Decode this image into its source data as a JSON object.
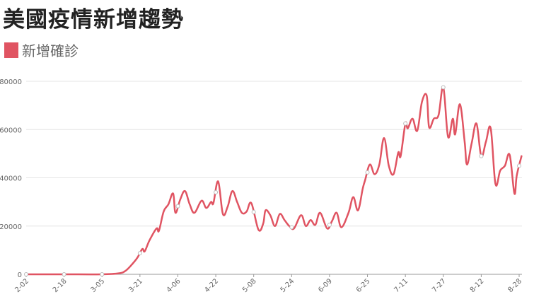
{
  "chart_data": {
    "type": "line",
    "title": "美國疫情新增趨勢",
    "series": [
      {
        "name": "新增確診",
        "color": "#e05462",
        "start_date": "2-02",
        "points": [
          [
            "2-02",
            0
          ],
          [
            "2-18",
            0
          ],
          [
            "3-05",
            0
          ],
          [
            "3-12",
            400
          ],
          [
            "3-15",
            1500
          ],
          [
            "3-18",
            4500
          ],
          [
            "3-20",
            7000
          ],
          [
            "3-22",
            10500
          ],
          [
            "3-23",
            9500
          ],
          [
            "3-25",
            14000
          ],
          [
            "3-28",
            19000
          ],
          [
            "3-29",
            18000
          ],
          [
            "3-31",
            26000
          ],
          [
            "4-02",
            29000
          ],
          [
            "4-04",
            33500
          ],
          [
            "4-05",
            25500
          ],
          [
            "4-07",
            31000
          ],
          [
            "4-09",
            34500
          ],
          [
            "4-11",
            29000
          ],
          [
            "4-13",
            25500
          ],
          [
            "4-16",
            30500
          ],
          [
            "4-18",
            27500
          ],
          [
            "4-20",
            30000
          ],
          [
            "4-21",
            29500
          ],
          [
            "4-23",
            38500
          ],
          [
            "4-25",
            25000
          ],
          [
            "4-27",
            28000
          ],
          [
            "4-29",
            34500
          ],
          [
            "5-01",
            30000
          ],
          [
            "5-03",
            25500
          ],
          [
            "5-05",
            26000
          ],
          [
            "5-07",
            29500
          ],
          [
            "5-10",
            18500
          ],
          [
            "5-12",
            21000
          ],
          [
            "5-13",
            26500
          ],
          [
            "5-15",
            24500
          ],
          [
            "5-17",
            20000
          ],
          [
            "5-19",
            25000
          ],
          [
            "5-21",
            22500
          ],
          [
            "5-23",
            20000
          ],
          [
            "5-25",
            19000
          ],
          [
            "5-28",
            24500
          ],
          [
            "5-30",
            20000
          ],
          [
            "6-01",
            22500
          ],
          [
            "6-03",
            20500
          ],
          [
            "6-05",
            25500
          ],
          [
            "6-08",
            19000
          ],
          [
            "6-10",
            22000
          ],
          [
            "6-12",
            25500
          ],
          [
            "6-14",
            19500
          ],
          [
            "6-17",
            25500
          ],
          [
            "6-19",
            32000
          ],
          [
            "6-21",
            26500
          ],
          [
            "6-23",
            35500
          ],
          [
            "6-24",
            39000
          ],
          [
            "6-26",
            45500
          ],
          [
            "6-28",
            41500
          ],
          [
            "6-30",
            45500
          ],
          [
            "7-02",
            56500
          ],
          [
            "7-04",
            45000
          ],
          [
            "7-06",
            41500
          ],
          [
            "7-08",
            50500
          ],
          [
            "7-09",
            49000
          ],
          [
            "7-11",
            62500
          ],
          [
            "7-12",
            60500
          ],
          [
            "7-14",
            64500
          ],
          [
            "7-16",
            59500
          ],
          [
            "7-18",
            71500
          ],
          [
            "7-20",
            74000
          ],
          [
            "7-21",
            61000
          ],
          [
            "7-23",
            64500
          ],
          [
            "7-25",
            66000
          ],
          [
            "7-27",
            77500
          ],
          [
            "7-29",
            57000
          ],
          [
            "7-31",
            64500
          ],
          [
            "8-01",
            58000
          ],
          [
            "8-03",
            70500
          ],
          [
            "8-05",
            55000
          ],
          [
            "8-06",
            45500
          ],
          [
            "8-08",
            54500
          ],
          [
            "8-10",
            62500
          ],
          [
            "8-12",
            49000
          ],
          [
            "8-14",
            55000
          ],
          [
            "8-16",
            60500
          ],
          [
            "8-18",
            37500
          ],
          [
            "8-20",
            43000
          ],
          [
            "8-22",
            45000
          ],
          [
            "8-24",
            49500
          ],
          [
            "8-26",
            33500
          ],
          [
            "8-27",
            41000
          ],
          [
            "8-29",
            49000
          ]
        ]
      }
    ],
    "x_ticks": [
      "2-02",
      "2-18",
      "3-05",
      "3-21",
      "4-06",
      "4-22",
      "5-08",
      "5-24",
      "6-09",
      "6-25",
      "7-11",
      "7-27",
      "8-12",
      "8-28"
    ],
    "y_ticks": [
      "0",
      "20000",
      "40000",
      "60000",
      "80000"
    ],
    "ylim": [
      0,
      80000
    ],
    "grid": "horizontal",
    "legend_position": "top-left"
  }
}
